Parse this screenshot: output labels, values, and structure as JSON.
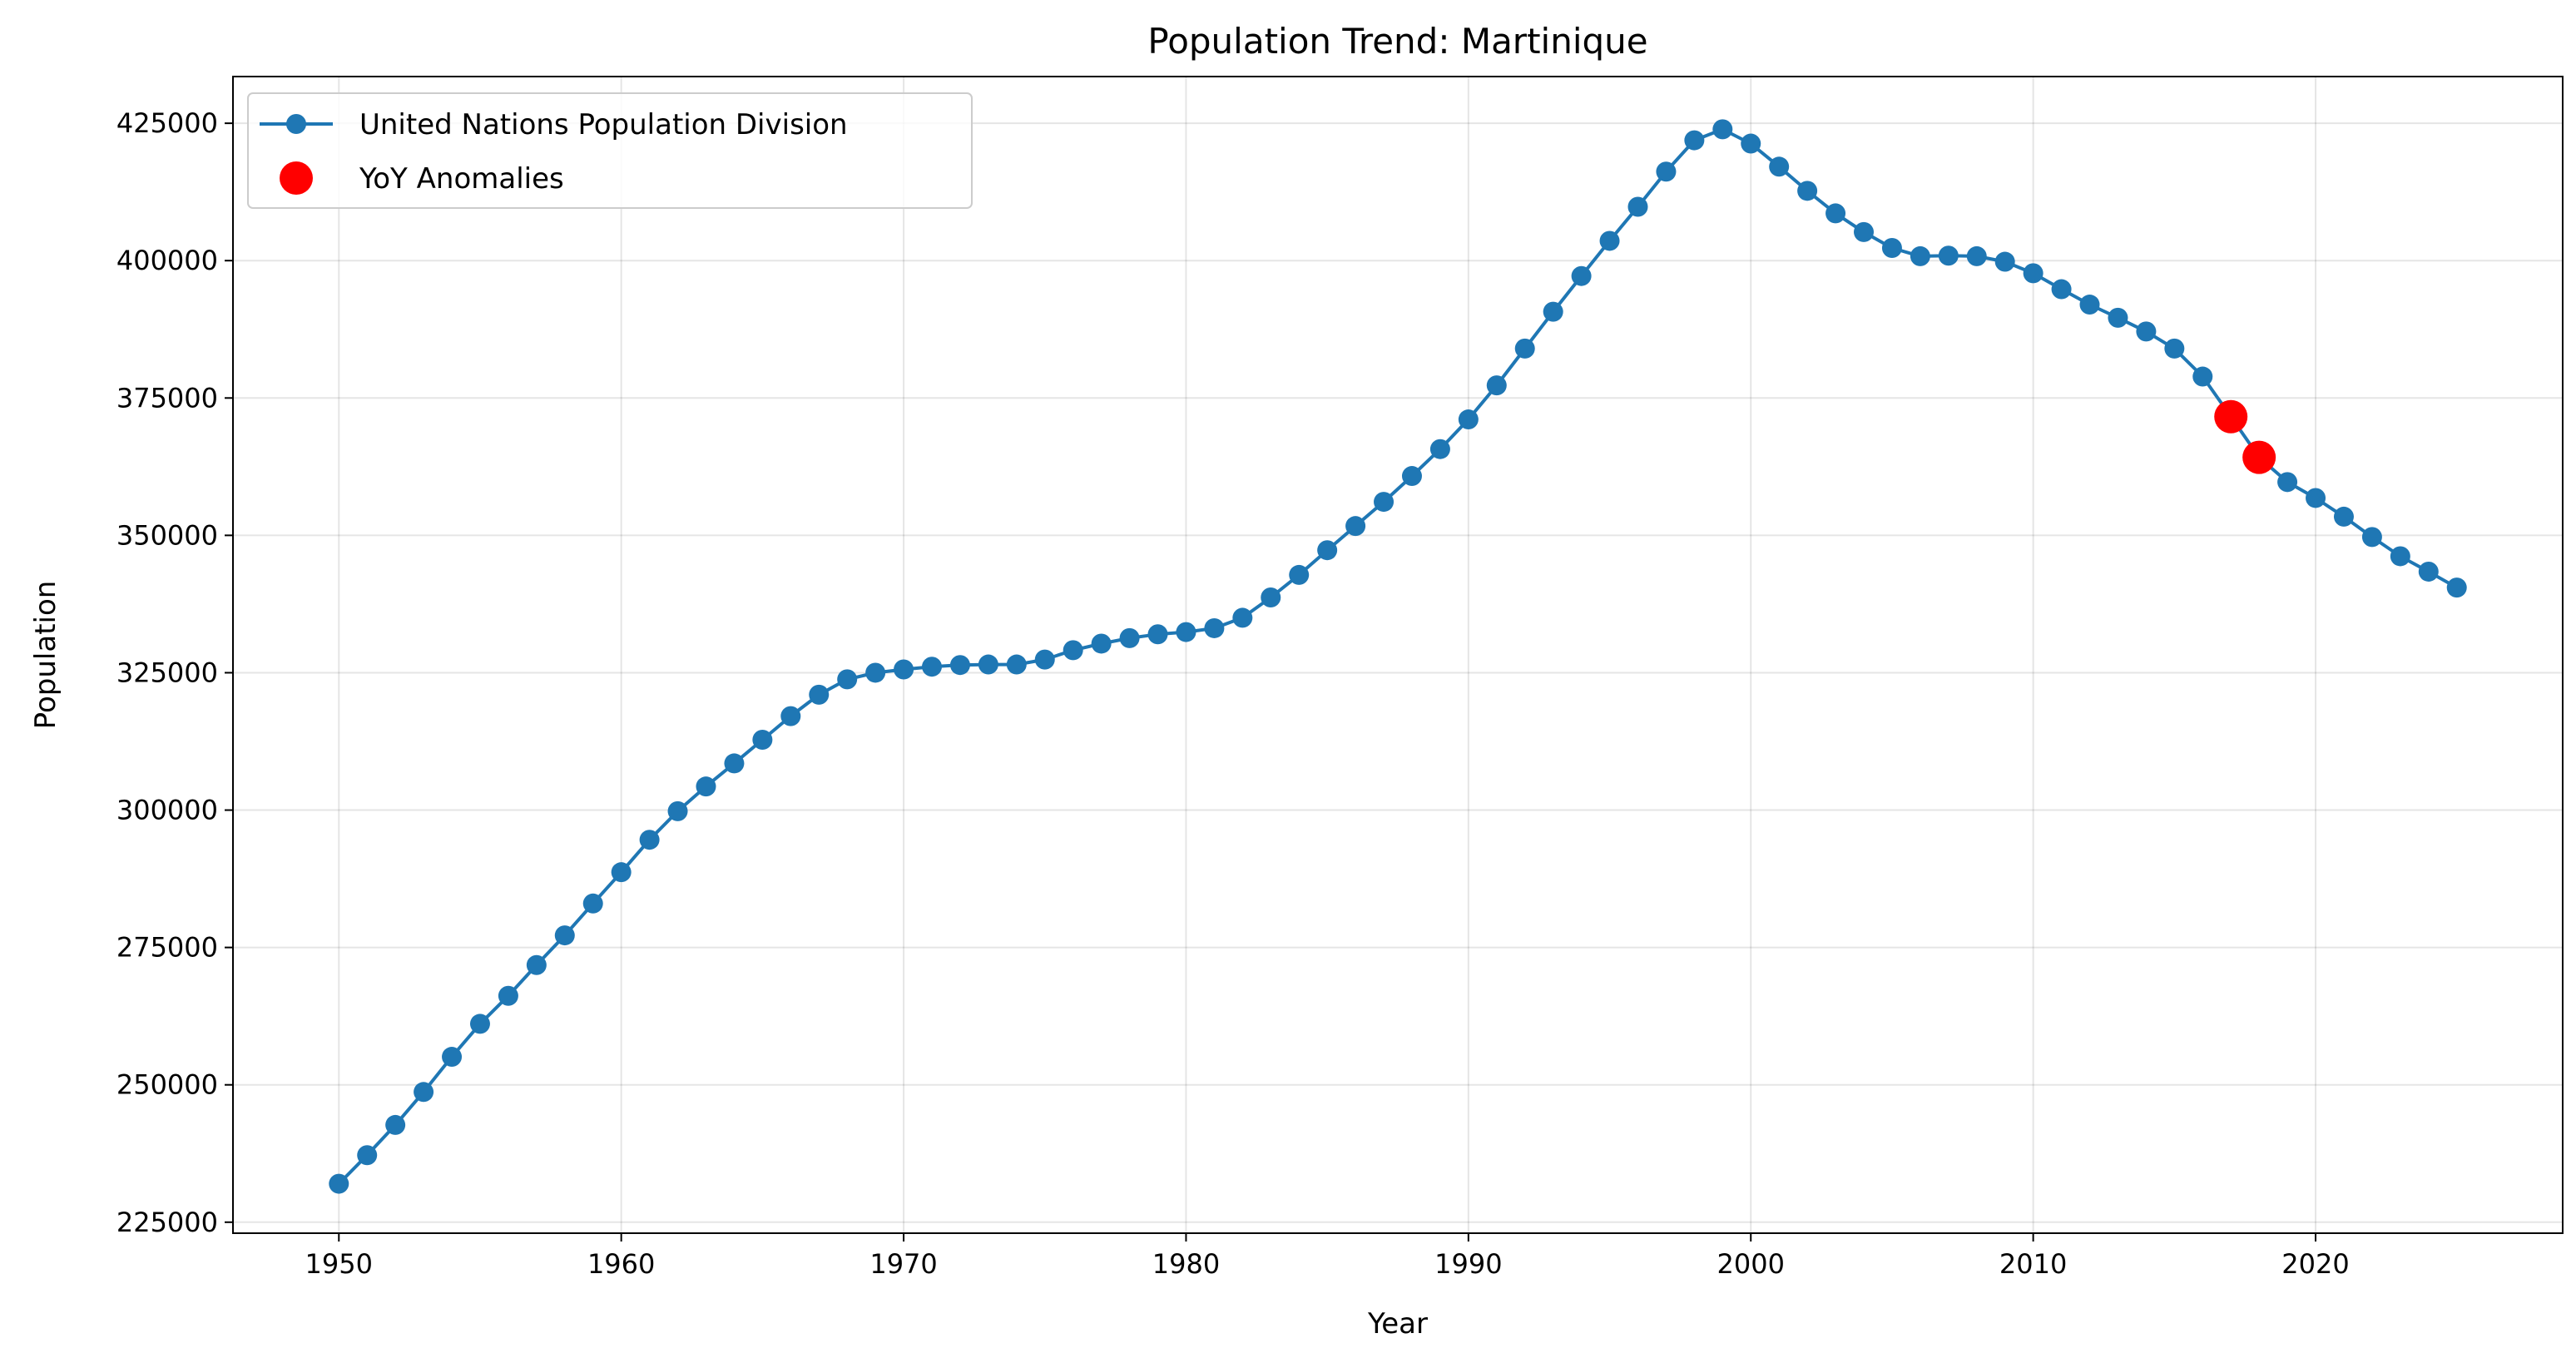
{
  "chart_data": {
    "type": "line",
    "title": "Population Trend: Martinique",
    "xlabel": "Year",
    "ylabel": "Population",
    "xlim": [
      1946.25,
      2028.75
    ],
    "ylim": [
      223000,
      433500
    ],
    "x_ticks": [
      1950,
      1960,
      1970,
      1980,
      1990,
      2000,
      2010,
      2020
    ],
    "y_ticks": [
      225000,
      250000,
      275000,
      300000,
      325000,
      350000,
      375000,
      400000,
      425000
    ],
    "grid": true,
    "legend_position": "top-left",
    "series": [
      {
        "name": "United Nations Population Division",
        "color": "#1f77b4",
        "marker": "circle",
        "x": [
          1950,
          1951,
          1952,
          1953,
          1954,
          1955,
          1956,
          1957,
          1958,
          1959,
          1960,
          1961,
          1962,
          1963,
          1964,
          1965,
          1966,
          1967,
          1968,
          1969,
          1970,
          1971,
          1972,
          1973,
          1974,
          1975,
          1976,
          1977,
          1978,
          1979,
          1980,
          1981,
          1982,
          1983,
          1984,
          1985,
          1986,
          1987,
          1988,
          1989,
          1990,
          1991,
          1992,
          1993,
          1994,
          1995,
          1996,
          1997,
          1998,
          1999,
          2000,
          2001,
          2002,
          2003,
          2004,
          2005,
          2006,
          2007,
          2008,
          2009,
          2010,
          2011,
          2012,
          2013,
          2014,
          2015,
          2016,
          2017,
          2018,
          2019,
          2020,
          2021,
          2022,
          2023,
          2024,
          2025
        ],
        "y": [
          232000,
          237200,
          242700,
          248700,
          255100,
          261100,
          266200,
          271800,
          277200,
          283000,
          288700,
          294600,
          299800,
          304300,
          308500,
          312800,
          317100,
          321000,
          323800,
          325000,
          325600,
          326100,
          326400,
          326500,
          326500,
          327400,
          329100,
          330300,
          331300,
          332000,
          332400,
          333100,
          335000,
          338700,
          342800,
          347300,
          351700,
          356100,
          360800,
          365700,
          371100,
          377300,
          384000,
          390700,
          397200,
          403600,
          409800,
          416200,
          421900,
          423900,
          421300,
          417100,
          412700,
          408600,
          405200,
          402300,
          400800,
          400900,
          400800,
          399800,
          397700,
          394800,
          392000,
          389600,
          387100,
          384000,
          378900,
          371600,
          364200,
          359700,
          356800,
          353400,
          349700,
          346200,
          343400,
          340500
        ]
      },
      {
        "name": "YoY Anomalies",
        "color": "#ff0000",
        "marker": "circle",
        "x": [
          2017,
          2018
        ],
        "y": [
          371600,
          364200
        ]
      }
    ]
  }
}
